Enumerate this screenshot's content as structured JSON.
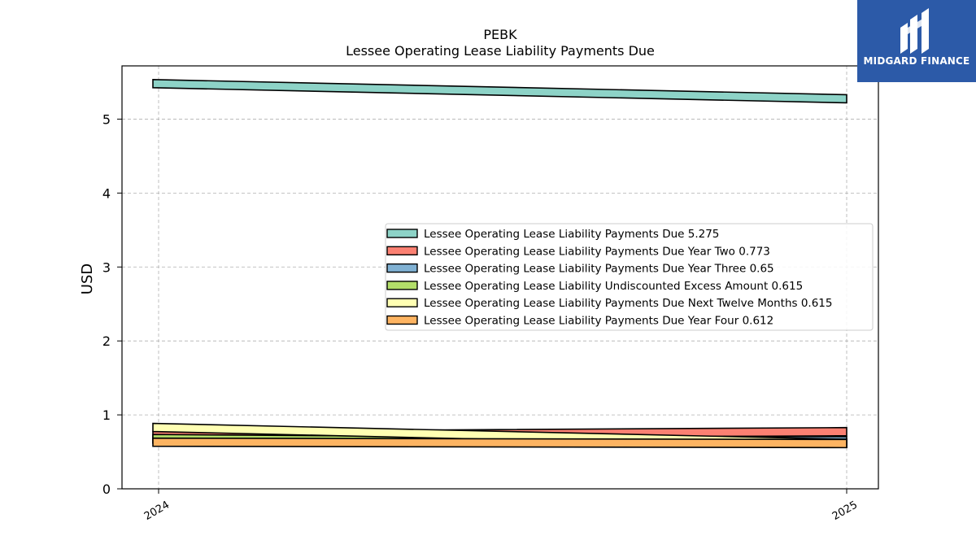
{
  "brand": {
    "name": "MIDGARD FINANCE",
    "logo_icon": "midgard-m-logo-icon",
    "bg_color": "#2c5aa8"
  },
  "chart_data": {
    "type": "line",
    "title": "PEBK",
    "subtitle": "Lessee Operating Lease Liability Payments Due",
    "xlabel": "",
    "ylabel": "USD",
    "x": [
      "2024",
      "2025"
    ],
    "ylim": [
      0,
      5.72
    ],
    "yticks": [
      0,
      1,
      2,
      3,
      4,
      5
    ],
    "grid": true,
    "legend_position": "center-right",
    "series": [
      {
        "name": "Lessee Operating Lease Liability Payments Due",
        "legend": "Lessee Operating Lease Liability Payments Due  5.275",
        "values": [
          5.48,
          5.275
        ],
        "color": "#8dd3c7"
      },
      {
        "name": "Lessee Operating Lease Liability Payments Due Year Two",
        "legend": "Lessee Operating Lease Liability Payments Due Year Two  0.773",
        "values": [
          0.72,
          0.773
        ],
        "color": "#fb8072"
      },
      {
        "name": "Lessee Operating Lease Liability Payments Due Year Three",
        "legend": "Lessee Operating Lease Liability Payments Due Year Three  0.65",
        "values": [
          0.67,
          0.65
        ],
        "color": "#80b1d3"
      },
      {
        "name": "Lessee Operating Lease Liability Undiscounted Excess Amount",
        "legend": "Lessee Operating Lease Liability Undiscounted Excess Amount  0.615",
        "values": [
          0.68,
          0.615
        ],
        "color": "#b3de69"
      },
      {
        "name": "Lessee Operating Lease Liability Payments Due Next Twelve Months",
        "legend": "Lessee Operating Lease Liability Payments Due Next Twelve Months  0.615",
        "values": [
          0.83,
          0.615
        ],
        "color": "#ffffb3"
      },
      {
        "name": "Lessee Operating Lease Liability Payments Due Year Four",
        "legend": "Lessee Operating Lease Liability Payments Due Year Four  0.612",
        "values": [
          0.63,
          0.612
        ],
        "color": "#fdb462"
      }
    ]
  }
}
